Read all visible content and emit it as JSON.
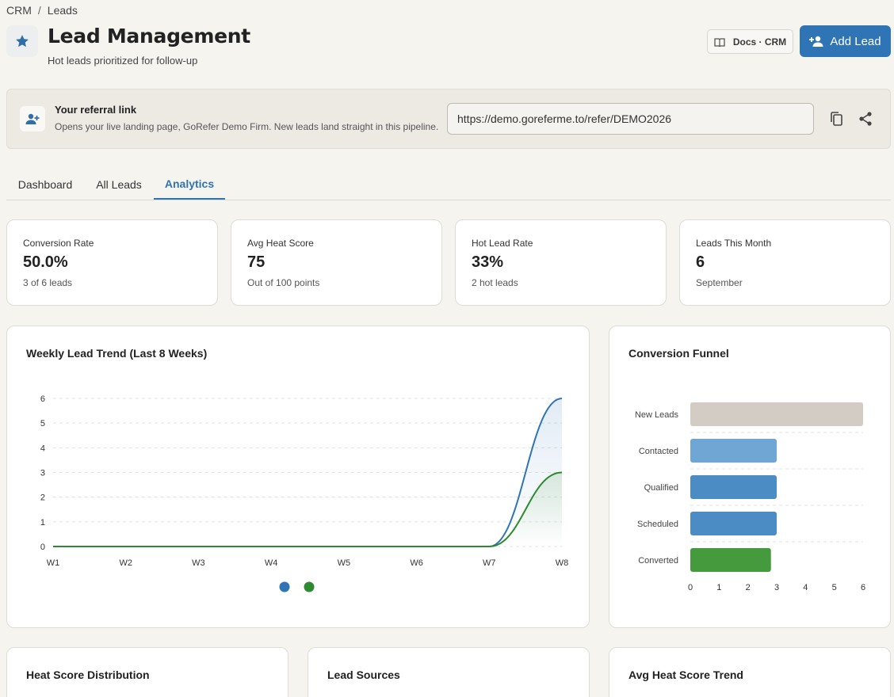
{
  "breadcrumb": {
    "root": "CRM",
    "separator": "/",
    "current": "Leads"
  },
  "header": {
    "title": "Lead Management",
    "subtitle": "Hot leads prioritized for follow-up",
    "icon": "star-icon",
    "docs_label": "Docs · CRM",
    "add_label": "Add Lead"
  },
  "referral": {
    "title": "Your referral link",
    "description": "Opens your live landing page, GoRefer Demo Firm. New leads land straight in this pipeline.",
    "url": "https://demo.goreferme.to/refer/DEMO2026"
  },
  "tabs": [
    {
      "label": "Dashboard",
      "active": false
    },
    {
      "label": "All Leads",
      "active": false
    },
    {
      "label": "Analytics",
      "active": true
    }
  ],
  "stats": [
    {
      "label": "Conversion Rate",
      "value": "50.0%",
      "sub": "3 of 6 leads"
    },
    {
      "label": "Avg Heat Score",
      "value": "75",
      "sub": "Out of 100 points"
    },
    {
      "label": "Hot Lead Rate",
      "value": "33%",
      "sub": "2 hot leads"
    },
    {
      "label": "Leads This Month",
      "value": "6",
      "sub": "September"
    }
  ],
  "panels": {
    "weekly_trend_title": "Weekly Lead Trend (Last 8 Weeks)",
    "funnel_title": "Conversion Funnel",
    "heat_distribution_title": "Heat Score Distribution",
    "lead_sources_title": "Lead Sources",
    "avg_heat_trend_title": "Avg Heat Score Trend"
  },
  "colors": {
    "accent": "#2f74b5",
    "series_blue": "#2f74b5",
    "series_green": "#2e8a2e",
    "funnel": [
      "#d3ccc5",
      "#6fa6d3",
      "#4b8cc5",
      "#4b8cc5",
      "#449a3c"
    ]
  },
  "chart_data": [
    {
      "type": "line",
      "title": "Weekly Lead Trend (Last 8 Weeks)",
      "categories": [
        "W1",
        "W2",
        "W3",
        "W4",
        "W5",
        "W6",
        "W7",
        "W8"
      ],
      "series": [
        {
          "values": [
            0,
            0,
            0,
            0,
            0,
            0,
            0,
            6
          ],
          "color": "#2f74b5"
        },
        {
          "values": [
            0,
            0,
            0,
            0,
            0,
            0,
            0,
            3
          ],
          "color": "#2e8a2e"
        }
      ],
      "ylim": [
        0,
        6
      ],
      "yticks": [
        0,
        1,
        2,
        3,
        4,
        5,
        6
      ],
      "grid": true,
      "legend": "bottom-center"
    },
    {
      "type": "bar",
      "orientation": "horizontal",
      "title": "Conversion Funnel",
      "categories": [
        "New Leads",
        "Contacted",
        "Qualified",
        "Scheduled",
        "Converted"
      ],
      "values": [
        6,
        3,
        3,
        3,
        2.8
      ],
      "xlim": [
        0,
        6
      ],
      "xticks": [
        0,
        1,
        2,
        3,
        4,
        5,
        6
      ],
      "grid": true
    }
  ]
}
